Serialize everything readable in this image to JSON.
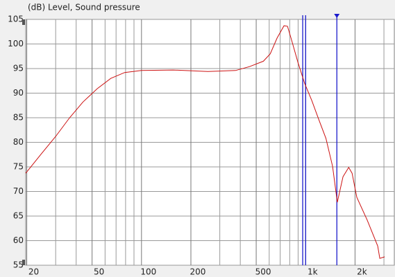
{
  "chart_data": {
    "type": "line",
    "title": "(dB)  Level, Sound pressure",
    "xscale": "log",
    "x": [
      19.7,
      24.6,
      30,
      36.5,
      44,
      53.7,
      65,
      79,
      100,
      156,
      254,
      374,
      455,
      553,
      609,
      670,
      738,
      775,
      815,
      897,
      986,
      1090,
      1200,
      1330,
      1460,
      1560,
      1690,
      1830,
      1920,
      2050,
      2370,
      2750,
      2830,
      3030
    ],
    "series": [
      {
        "name": "Level",
        "color": "#cc1111",
        "values": [
          73.7,
          77.7,
          81.2,
          85,
          88.2,
          90.9,
          93,
          94.2,
          94.6,
          94.7,
          94.4,
          94.6,
          95.4,
          96.5,
          98,
          101.2,
          103.7,
          103.6,
          101.2,
          96.3,
          92,
          88.5,
          84.7,
          80.8,
          75.1,
          67.8,
          73,
          74.9,
          73.7,
          68.8,
          64.2,
          58.9,
          56.4,
          56.7
        ]
      }
    ],
    "xlim": [
      19.7,
      3470
    ],
    "ylim": [
      55,
      105
    ],
    "xticks": [
      20,
      50,
      100,
      200,
      500,
      {
        "value": 1000,
        "label": "1k"
      },
      {
        "value": 2000,
        "label": "2k"
      }
    ],
    "xminor": [
      30,
      40,
      60,
      70,
      80,
      90,
      300,
      400,
      600,
      700,
      800,
      900,
      3000
    ],
    "yticks": [
      55,
      60,
      65,
      70,
      75,
      80,
      85,
      90,
      95,
      100,
      105
    ],
    "cursors": [
      960,
      1000,
      1550
    ],
    "cursor_color": "#1a1acc",
    "grid": true
  }
}
